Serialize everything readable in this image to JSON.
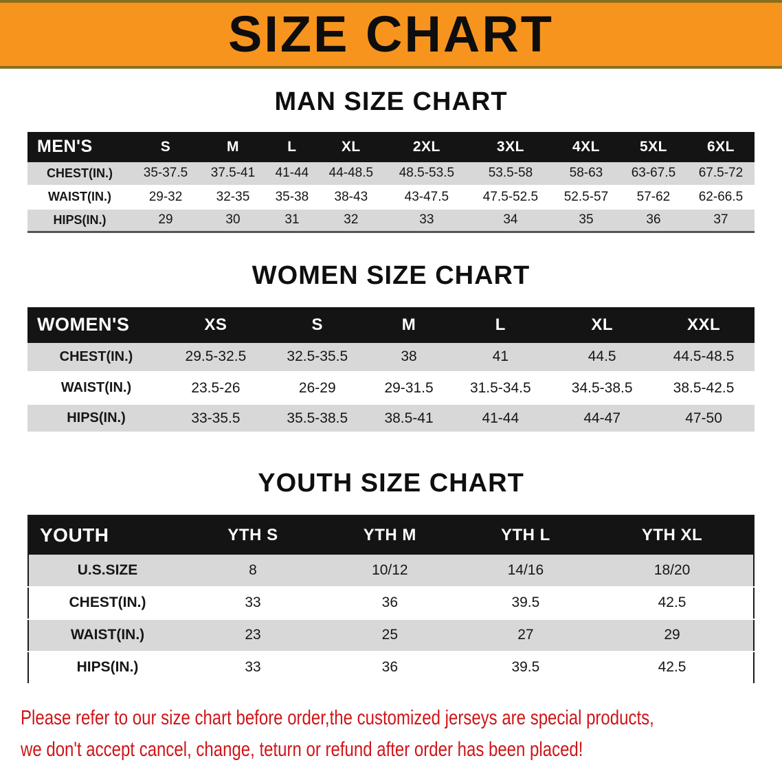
{
  "banner": {
    "title": "SIZE CHART"
  },
  "men": {
    "heading": "MAN SIZE CHART",
    "header": [
      "MEN'S",
      "S",
      "M",
      "L",
      "XL",
      "2XL",
      "3XL",
      "4XL",
      "5XL",
      "6XL"
    ],
    "rows": [
      [
        "CHEST(IN.)",
        "35-37.5",
        "37.5-41",
        "41-44",
        "44-48.5",
        "48.5-53.5",
        "53.5-58",
        "58-63",
        "63-67.5",
        "67.5-72"
      ],
      [
        "WAIST(IN.)",
        "29-32",
        "32-35",
        "35-38",
        "38-43",
        "43-47.5",
        "47.5-52.5",
        "52.5-57",
        "57-62",
        "62-66.5"
      ],
      [
        "HIPS(IN.)",
        "29",
        "30",
        "31",
        "32",
        "33",
        "34",
        "35",
        "36",
        "37"
      ]
    ]
  },
  "women": {
    "heading": "WOMEN SIZE CHART",
    "header": [
      "WOMEN'S",
      "XS",
      "S",
      "M",
      "L",
      "XL",
      "XXL"
    ],
    "rows": [
      [
        "CHEST(IN.)",
        "29.5-32.5",
        "32.5-35.5",
        "38",
        "41",
        "44.5",
        "44.5-48.5"
      ],
      [
        "WAIST(IN.)",
        "23.5-26",
        "26-29",
        "29-31.5",
        "31.5-34.5",
        "34.5-38.5",
        "38.5-42.5"
      ],
      [
        "HIPS(IN.)",
        "33-35.5",
        "35.5-38.5",
        "38.5-41",
        "41-44",
        "44-47",
        "47-50"
      ]
    ]
  },
  "youth": {
    "heading": "YOUTH SIZE CHART",
    "header": [
      "YOUTH",
      "YTH S",
      "YTH M",
      "YTH L",
      "YTH XL"
    ],
    "rows": [
      [
        "U.S.SIZE",
        "8",
        "10/12",
        "14/16",
        "18/20"
      ],
      [
        "CHEST(IN.)",
        "33",
        "36",
        "39.5",
        "42.5"
      ],
      [
        "WAIST(IN.)",
        "23",
        "25",
        "27",
        "29"
      ],
      [
        "HIPS(IN.)",
        "33",
        "36",
        "39.5",
        "42.5"
      ]
    ]
  },
  "disclaimer": {
    "line1": "Please refer to our size chart before order,the customized jerseys are special products,",
    "line2": "we don't accept cancel, change, teturn or refund after order has been placed!"
  },
  "colors": {
    "banner-bg": "#f7941e",
    "banner-edge": "#86701f",
    "table-header-bg": "#141414",
    "row-gray": "#d8d8d8",
    "disclaimer-red": "#cf1418"
  }
}
